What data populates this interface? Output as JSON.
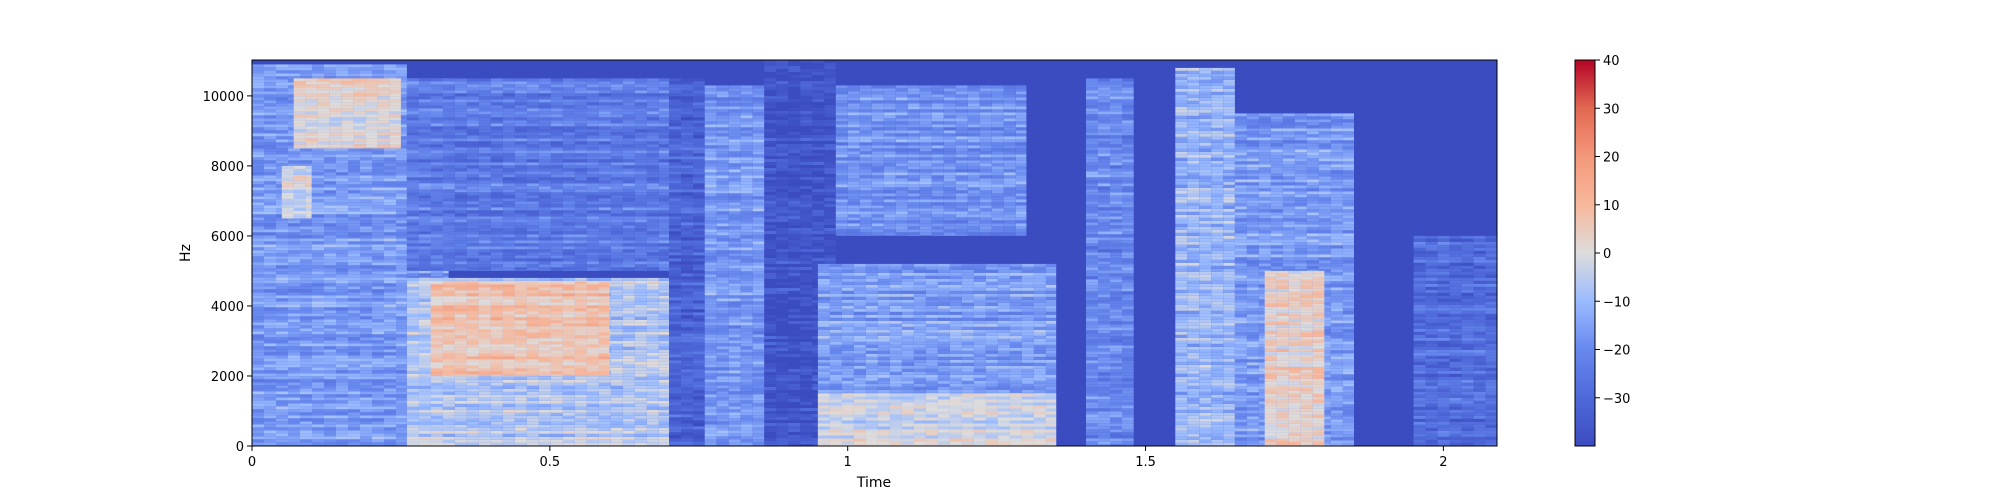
{
  "chart_data": {
    "type": "heatmap",
    "title": "",
    "xlabel": "Time",
    "ylabel": "Hz",
    "xlim": [
      0,
      2.09
    ],
    "ylim": [
      0,
      11025
    ],
    "xticks": [
      0,
      0.5,
      1,
      1.5,
      2
    ],
    "xtick_labels": [
      "0",
      "0.5",
      "1",
      "1.5",
      "2"
    ],
    "yticks": [
      0,
      2000,
      4000,
      6000,
      8000,
      10000
    ],
    "ytick_labels": [
      "0",
      "2000",
      "4000",
      "6000",
      "8000",
      "10000"
    ],
    "colormap": "coolwarm",
    "colorbar": {
      "min": -40,
      "max": 40,
      "ticks": [
        -30,
        -20,
        -10,
        0,
        10,
        20,
        30,
        40
      ],
      "tick_labels": [
        "−30",
        "−20",
        "−10",
        "0",
        "10",
        "20",
        "30",
        "40"
      ]
    },
    "regions_db": [
      {
        "t0": 0.0,
        "t1": 0.26,
        "f0": 0,
        "f1": 10900,
        "db": -16
      },
      {
        "t0": 0.07,
        "t1": 0.25,
        "f0": 8500,
        "f1": 10500,
        "db": 2
      },
      {
        "t0": 0.05,
        "t1": 0.1,
        "f0": 6500,
        "f1": 8000,
        "db": -2
      },
      {
        "t0": 0.26,
        "t1": 0.33,
        "f0": 0,
        "f1": 10500,
        "db": -18
      },
      {
        "t0": 0.26,
        "t1": 0.7,
        "f0": 0,
        "f1": 4800,
        "db": -6
      },
      {
        "t0": 0.3,
        "t1": 0.6,
        "f0": 2000,
        "f1": 4700,
        "db": 8
      },
      {
        "t0": 0.26,
        "t1": 0.7,
        "f0": 5000,
        "f1": 10500,
        "db": -24
      },
      {
        "t0": 0.7,
        "t1": 0.76,
        "f0": 0,
        "f1": 10500,
        "db": -32
      },
      {
        "t0": 0.76,
        "t1": 0.86,
        "f0": 0,
        "f1": 10300,
        "db": -16
      },
      {
        "t0": 0.86,
        "t1": 0.98,
        "f0": 0,
        "f1": 11025,
        "db": -38
      },
      {
        "t0": 0.95,
        "t1": 1.35,
        "f0": 0,
        "f1": 5200,
        "db": -15
      },
      {
        "t0": 0.95,
        "t1": 1.35,
        "f0": 0,
        "f1": 1500,
        "db": -2
      },
      {
        "t0": 0.98,
        "t1": 1.3,
        "f0": 6000,
        "f1": 10300,
        "db": -18
      },
      {
        "t0": 1.4,
        "t1": 1.48,
        "f0": 0,
        "f1": 10500,
        "db": -20
      },
      {
        "t0": 1.55,
        "t1": 1.65,
        "f0": 0,
        "f1": 10800,
        "db": -10
      },
      {
        "t0": 1.65,
        "t1": 1.85,
        "f0": 0,
        "f1": 9500,
        "db": -16
      },
      {
        "t0": 1.7,
        "t1": 1.8,
        "f0": 0,
        "f1": 5000,
        "db": 4
      },
      {
        "t0": 1.95,
        "t1": 2.09,
        "f0": 0,
        "f1": 6000,
        "db": -28
      }
    ]
  }
}
